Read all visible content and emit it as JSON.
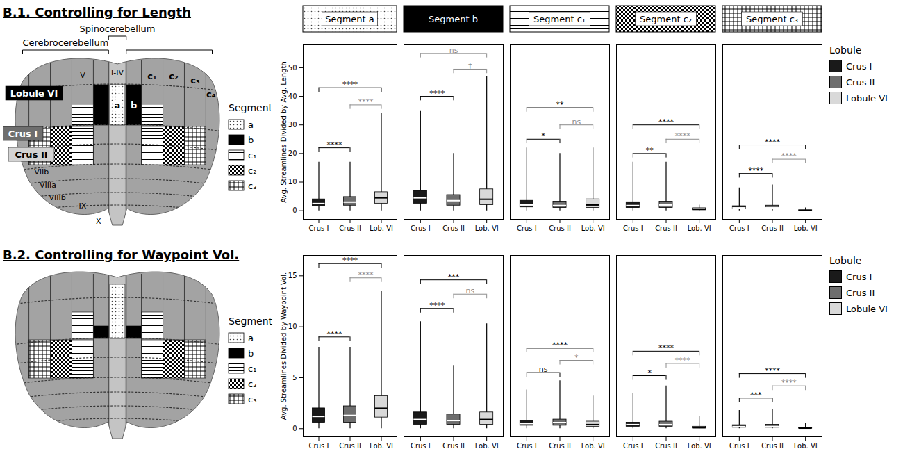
{
  "diagrams": [
    {
      "title": "B.1. Controlling for Length",
      "regions": [
        "Cerebrocerebellum",
        "Spinocerebellum"
      ],
      "lobule_boxes": [
        "Lobule VI",
        "Crus I",
        "Crus II"
      ],
      "lobules": [
        "I-IV",
        "V",
        "VIIb",
        "VIIIa",
        "VIIIb",
        "IX",
        "X"
      ],
      "segment_labels": [
        "a",
        "b",
        "c₁",
        "c₂",
        "c₃",
        "c₄"
      ],
      "key": {
        "title": "Segment",
        "items": [
          "a",
          "b",
          "c₁",
          "c₂",
          "c₃"
        ]
      }
    },
    {
      "title": "B.2. Controlling for Waypoint Vol.",
      "key": {
        "title": "Segment",
        "items": [
          "a",
          "b",
          "c₁",
          "c₂",
          "c₃"
        ]
      }
    }
  ],
  "chart_data": [
    {
      "type": "box",
      "title": "Segment a",
      "ylabel": "Avg. Streamlines Divided by Avg. Length",
      "categories": [
        "Crus I",
        "Crus II",
        "Lob. VI"
      ],
      "colors": [
        "#1a1a1a",
        "#6e6e6e",
        "#d9d9d9"
      ],
      "boxes": [
        {
          "min": 0,
          "q1": 1.5,
          "median": 2.5,
          "q3": 4,
          "max": 17
        },
        {
          "min": 0,
          "q1": 1.8,
          "median": 3,
          "q3": 4.8,
          "max": 17
        },
        {
          "min": 0,
          "q1": 2.5,
          "median": 4.5,
          "q3": 6.5,
          "max": 34
        }
      ],
      "comparisons": [
        {
          "from": "Crus I",
          "to": "Crus II",
          "label": "****",
          "y": 22,
          "color": "#000000"
        },
        {
          "from": "Crus II",
          "to": "Lob. VI",
          "label": "****",
          "y": 37,
          "color": "#8c8c8c"
        },
        {
          "from": "Crus I",
          "to": "Lob. VI",
          "label": "****",
          "y": 43,
          "color": "#000000"
        }
      ],
      "ylim": [
        -3,
        58
      ],
      "yticks": [
        0,
        10,
        20,
        30,
        40,
        50
      ]
    },
    {
      "type": "box",
      "title": "Segment b",
      "tick_labels": "x",
      "categories": [
        "Crus I",
        "Crus II",
        "Lob. VI"
      ],
      "colors": [
        "#1a1a1a",
        "#6e6e6e",
        "#d9d9d9"
      ],
      "boxes": [
        {
          "min": 0,
          "q1": 2.5,
          "median": 4.5,
          "q3": 7,
          "max": 35
        },
        {
          "min": 0,
          "q1": 1.8,
          "median": 3.5,
          "q3": 5.5,
          "max": 20
        },
        {
          "min": 0,
          "q1": 2,
          "median": 4,
          "q3": 7.5,
          "max": 47
        }
      ],
      "comparisons": [
        {
          "from": "Crus I",
          "to": "Crus II",
          "label": "****",
          "y": 40,
          "color": "#000000"
        },
        {
          "from": "Crus II",
          "to": "Lob. VI",
          "label": "†",
          "y": 49.5,
          "color": "#8c8c8c"
        },
        {
          "from": "Crus I",
          "to": "Lob. VI",
          "label": "ns",
          "y": 55,
          "color": "#8c8c8c"
        }
      ],
      "ylim": [
        -3,
        58
      ]
    },
    {
      "type": "box",
      "title": "Segment c₁",
      "tick_labels": "x",
      "categories": [
        "Crus I",
        "Crus II",
        "Lob. VI"
      ],
      "colors": [
        "#1a1a1a",
        "#6e6e6e",
        "#d9d9d9"
      ],
      "boxes": [
        {
          "min": 0,
          "q1": 1.2,
          "median": 2,
          "q3": 3.5,
          "max": 22
        },
        {
          "min": 0,
          "q1": 1,
          "median": 1.8,
          "q3": 3.2,
          "max": 20
        },
        {
          "min": 0,
          "q1": 1,
          "median": 2,
          "q3": 4,
          "max": 22
        }
      ],
      "comparisons": [
        {
          "from": "Crus I",
          "to": "Crus II",
          "label": "*",
          "y": 25,
          "color": "#000000"
        },
        {
          "from": "Crus II",
          "to": "Lob. VI",
          "label": "ns",
          "y": 30,
          "color": "#8c8c8c"
        },
        {
          "from": "Crus I",
          "to": "Lob. VI",
          "label": "**",
          "y": 36,
          "color": "#000000"
        }
      ],
      "ylim": [
        -3,
        58
      ]
    },
    {
      "type": "box",
      "title": "Segment c₂",
      "tick_labels": "x",
      "categories": [
        "Crus I",
        "Crus II",
        "Lob. VI"
      ],
      "colors": [
        "#1a1a1a",
        "#6e6e6e",
        "#d9d9d9"
      ],
      "boxes": [
        {
          "min": 0,
          "q1": 1,
          "median": 1.8,
          "q3": 3,
          "max": 17
        },
        {
          "min": 0,
          "q1": 1,
          "median": 2,
          "q3": 3.2,
          "max": 17
        },
        {
          "min": 0,
          "q1": 0.2,
          "median": 0.5,
          "q3": 0.9,
          "max": 2
        }
      ],
      "comparisons": [
        {
          "from": "Crus I",
          "to": "Crus II",
          "label": "**",
          "y": 20,
          "color": "#000000"
        },
        {
          "from": "Crus II",
          "to": "Lob. VI",
          "label": "****",
          "y": 25,
          "color": "#8c8c8c"
        },
        {
          "from": "Crus I",
          "to": "Lob. VI",
          "label": "****",
          "y": 30,
          "color": "#000000"
        }
      ],
      "ylim": [
        -3,
        58
      ]
    },
    {
      "type": "box",
      "title": "Segment c₃",
      "tick_labels": "x",
      "categories": [
        "Crus I",
        "Crus II",
        "Lob. VI"
      ],
      "colors": [
        "#1a1a1a",
        "#6e6e6e",
        "#d9d9d9"
      ],
      "boxes": [
        {
          "min": 0,
          "q1": 0.5,
          "median": 1,
          "q3": 1.6,
          "max": 8
        },
        {
          "min": 0,
          "q1": 0.5,
          "median": 1,
          "q3": 1.8,
          "max": 9
        },
        {
          "min": 0,
          "q1": 0.05,
          "median": 0.1,
          "q3": 0.2,
          "max": 1
        }
      ],
      "comparisons": [
        {
          "from": "Crus I",
          "to": "Crus II",
          "label": "****",
          "y": 13,
          "color": "#000000"
        },
        {
          "from": "Crus II",
          "to": "Lob. VI",
          "label": "****",
          "y": 18,
          "color": "#8c8c8c"
        },
        {
          "from": "Crus I",
          "to": "Lob. VI",
          "label": "****",
          "y": 23,
          "color": "#000000"
        }
      ],
      "ylim": [
        -3,
        58
      ],
      "legend": "right",
      "legend_title": "Lobule",
      "legend_labels": [
        "Crus I",
        "Crus II",
        "Lobule VI"
      ]
    },
    {
      "type": "box",
      "ylabel": "Avg. Streamlines Divided by Waypoint Vol.",
      "categories": [
        "Crus I",
        "Crus II",
        "Lob. VI"
      ],
      "colors": [
        "#1a1a1a",
        "#6e6e6e",
        "#d9d9d9"
      ],
      "boxes": [
        {
          "min": 0,
          "q1": 0.6,
          "median": 1.2,
          "q3": 2,
          "max": 8
        },
        {
          "min": 0,
          "q1": 0.6,
          "median": 1.3,
          "q3": 2.2,
          "max": 8
        },
        {
          "min": 0,
          "q1": 1.1,
          "median": 2,
          "q3": 3.2,
          "max": 13.5
        }
      ],
      "comparisons": [
        {
          "from": "Crus I",
          "to": "Crus II",
          "label": "****",
          "y": 9,
          "color": "#000000"
        },
        {
          "from": "Crus II",
          "to": "Lob. VI",
          "label": "****",
          "y": 14.8,
          "color": "#8c8c8c"
        },
        {
          "from": "Crus I",
          "to": "Lob. VI",
          "label": "****",
          "y": 16.2,
          "color": "#000000"
        }
      ],
      "ylim": [
        -0.8,
        17
      ],
      "yticks": [
        0,
        5,
        10,
        15
      ]
    },
    {
      "type": "box",
      "tick_labels": "x",
      "categories": [
        "Crus I",
        "Crus II",
        "Lob. VI"
      ],
      "colors": [
        "#1a1a1a",
        "#6e6e6e",
        "#d9d9d9"
      ],
      "boxes": [
        {
          "min": 0,
          "q1": 0.4,
          "median": 0.9,
          "q3": 1.6,
          "max": 10.5
        },
        {
          "min": 0,
          "q1": 0.4,
          "median": 0.8,
          "q3": 1.4,
          "max": 6.2
        },
        {
          "min": 0,
          "q1": 0.4,
          "median": 0.9,
          "q3": 1.6,
          "max": 10.3
        }
      ],
      "comparisons": [
        {
          "from": "Crus I",
          "to": "Crus II",
          "label": "****",
          "y": 11.8,
          "color": "#000000"
        },
        {
          "from": "Crus II",
          "to": "Lob. VI",
          "label": "ns",
          "y": 13.2,
          "color": "#8c8c8c"
        },
        {
          "from": "Crus I",
          "to": "Lob. VI",
          "label": "***",
          "y": 14.6,
          "color": "#000000"
        }
      ],
      "ylim": [
        -0.8,
        17
      ]
    },
    {
      "type": "box",
      "tick_labels": "x",
      "categories": [
        "Crus I",
        "Crus II",
        "Lob. VI"
      ],
      "colors": [
        "#1a1a1a",
        "#6e6e6e",
        "#d9d9d9"
      ],
      "boxes": [
        {
          "min": 0,
          "q1": 0.3,
          "median": 0.5,
          "q3": 0.8,
          "max": 3.8
        },
        {
          "min": 0,
          "q1": 0.3,
          "median": 0.6,
          "q3": 0.9,
          "max": 4.7
        },
        {
          "min": 0,
          "q1": 0.2,
          "median": 0.4,
          "q3": 0.7,
          "max": 3.2
        }
      ],
      "comparisons": [
        {
          "from": "Crus I",
          "to": "Crus II",
          "label": "ns",
          "y": 5.5,
          "color": "#000000"
        },
        {
          "from": "Crus II",
          "to": "Lob. VI",
          "label": "*",
          "y": 6.7,
          "color": "#8c8c8c"
        },
        {
          "from": "Crus I",
          "to": "Lob. VI",
          "label": "****",
          "y": 7.9,
          "color": "#000000"
        }
      ],
      "ylim": [
        -0.8,
        17
      ]
    },
    {
      "type": "box",
      "tick_labels": "x",
      "categories": [
        "Crus I",
        "Crus II",
        "Lob. VI"
      ],
      "colors": [
        "#1a1a1a",
        "#6e6e6e",
        "#d9d9d9"
      ],
      "boxes": [
        {
          "min": 0,
          "q1": 0.2,
          "median": 0.4,
          "q3": 0.6,
          "max": 3.5
        },
        {
          "min": 0,
          "q1": 0.2,
          "median": 0.4,
          "q3": 0.7,
          "max": 4.2
        },
        {
          "min": 0,
          "q1": 0.03,
          "median": 0.1,
          "q3": 0.2,
          "max": 1.2
        }
      ],
      "comparisons": [
        {
          "from": "Crus I",
          "to": "Crus II",
          "label": "*",
          "y": 5.2,
          "color": "#000000"
        },
        {
          "from": "Crus II",
          "to": "Lob. VI",
          "label": "****",
          "y": 6.4,
          "color": "#8c8c8c"
        },
        {
          "from": "Crus I",
          "to": "Lob. VI",
          "label": "****",
          "y": 7.6,
          "color": "#000000"
        }
      ],
      "ylim": [
        -0.8,
        17
      ]
    },
    {
      "type": "box",
      "tick_labels": "x",
      "categories": [
        "Crus I",
        "Crus II",
        "Lob. VI"
      ],
      "colors": [
        "#1a1a1a",
        "#6e6e6e",
        "#d9d9d9"
      ],
      "boxes": [
        {
          "min": 0,
          "q1": 0.1,
          "median": 0.2,
          "q3": 0.35,
          "max": 1.8
        },
        {
          "min": 0,
          "q1": 0.1,
          "median": 0.2,
          "q3": 0.4,
          "max": 1.9
        },
        {
          "min": 0,
          "q1": 0.02,
          "median": 0.05,
          "q3": 0.08,
          "max": 0.5
        }
      ],
      "comparisons": [
        {
          "from": "Crus I",
          "to": "Crus II",
          "label": "***",
          "y": 3.0,
          "color": "#000000"
        },
        {
          "from": "Crus II",
          "to": "Lob. VI",
          "label": "****",
          "y": 4.2,
          "color": "#8c8c8c"
        },
        {
          "from": "Crus I",
          "to": "Lob. VI",
          "label": "****",
          "y": 5.4,
          "color": "#000000"
        }
      ],
      "ylim": [
        -0.8,
        17
      ],
      "legend": "right",
      "legend_title": "Lobule",
      "legend_labels": [
        "Crus I",
        "Crus II",
        "Lobule VI"
      ]
    }
  ]
}
